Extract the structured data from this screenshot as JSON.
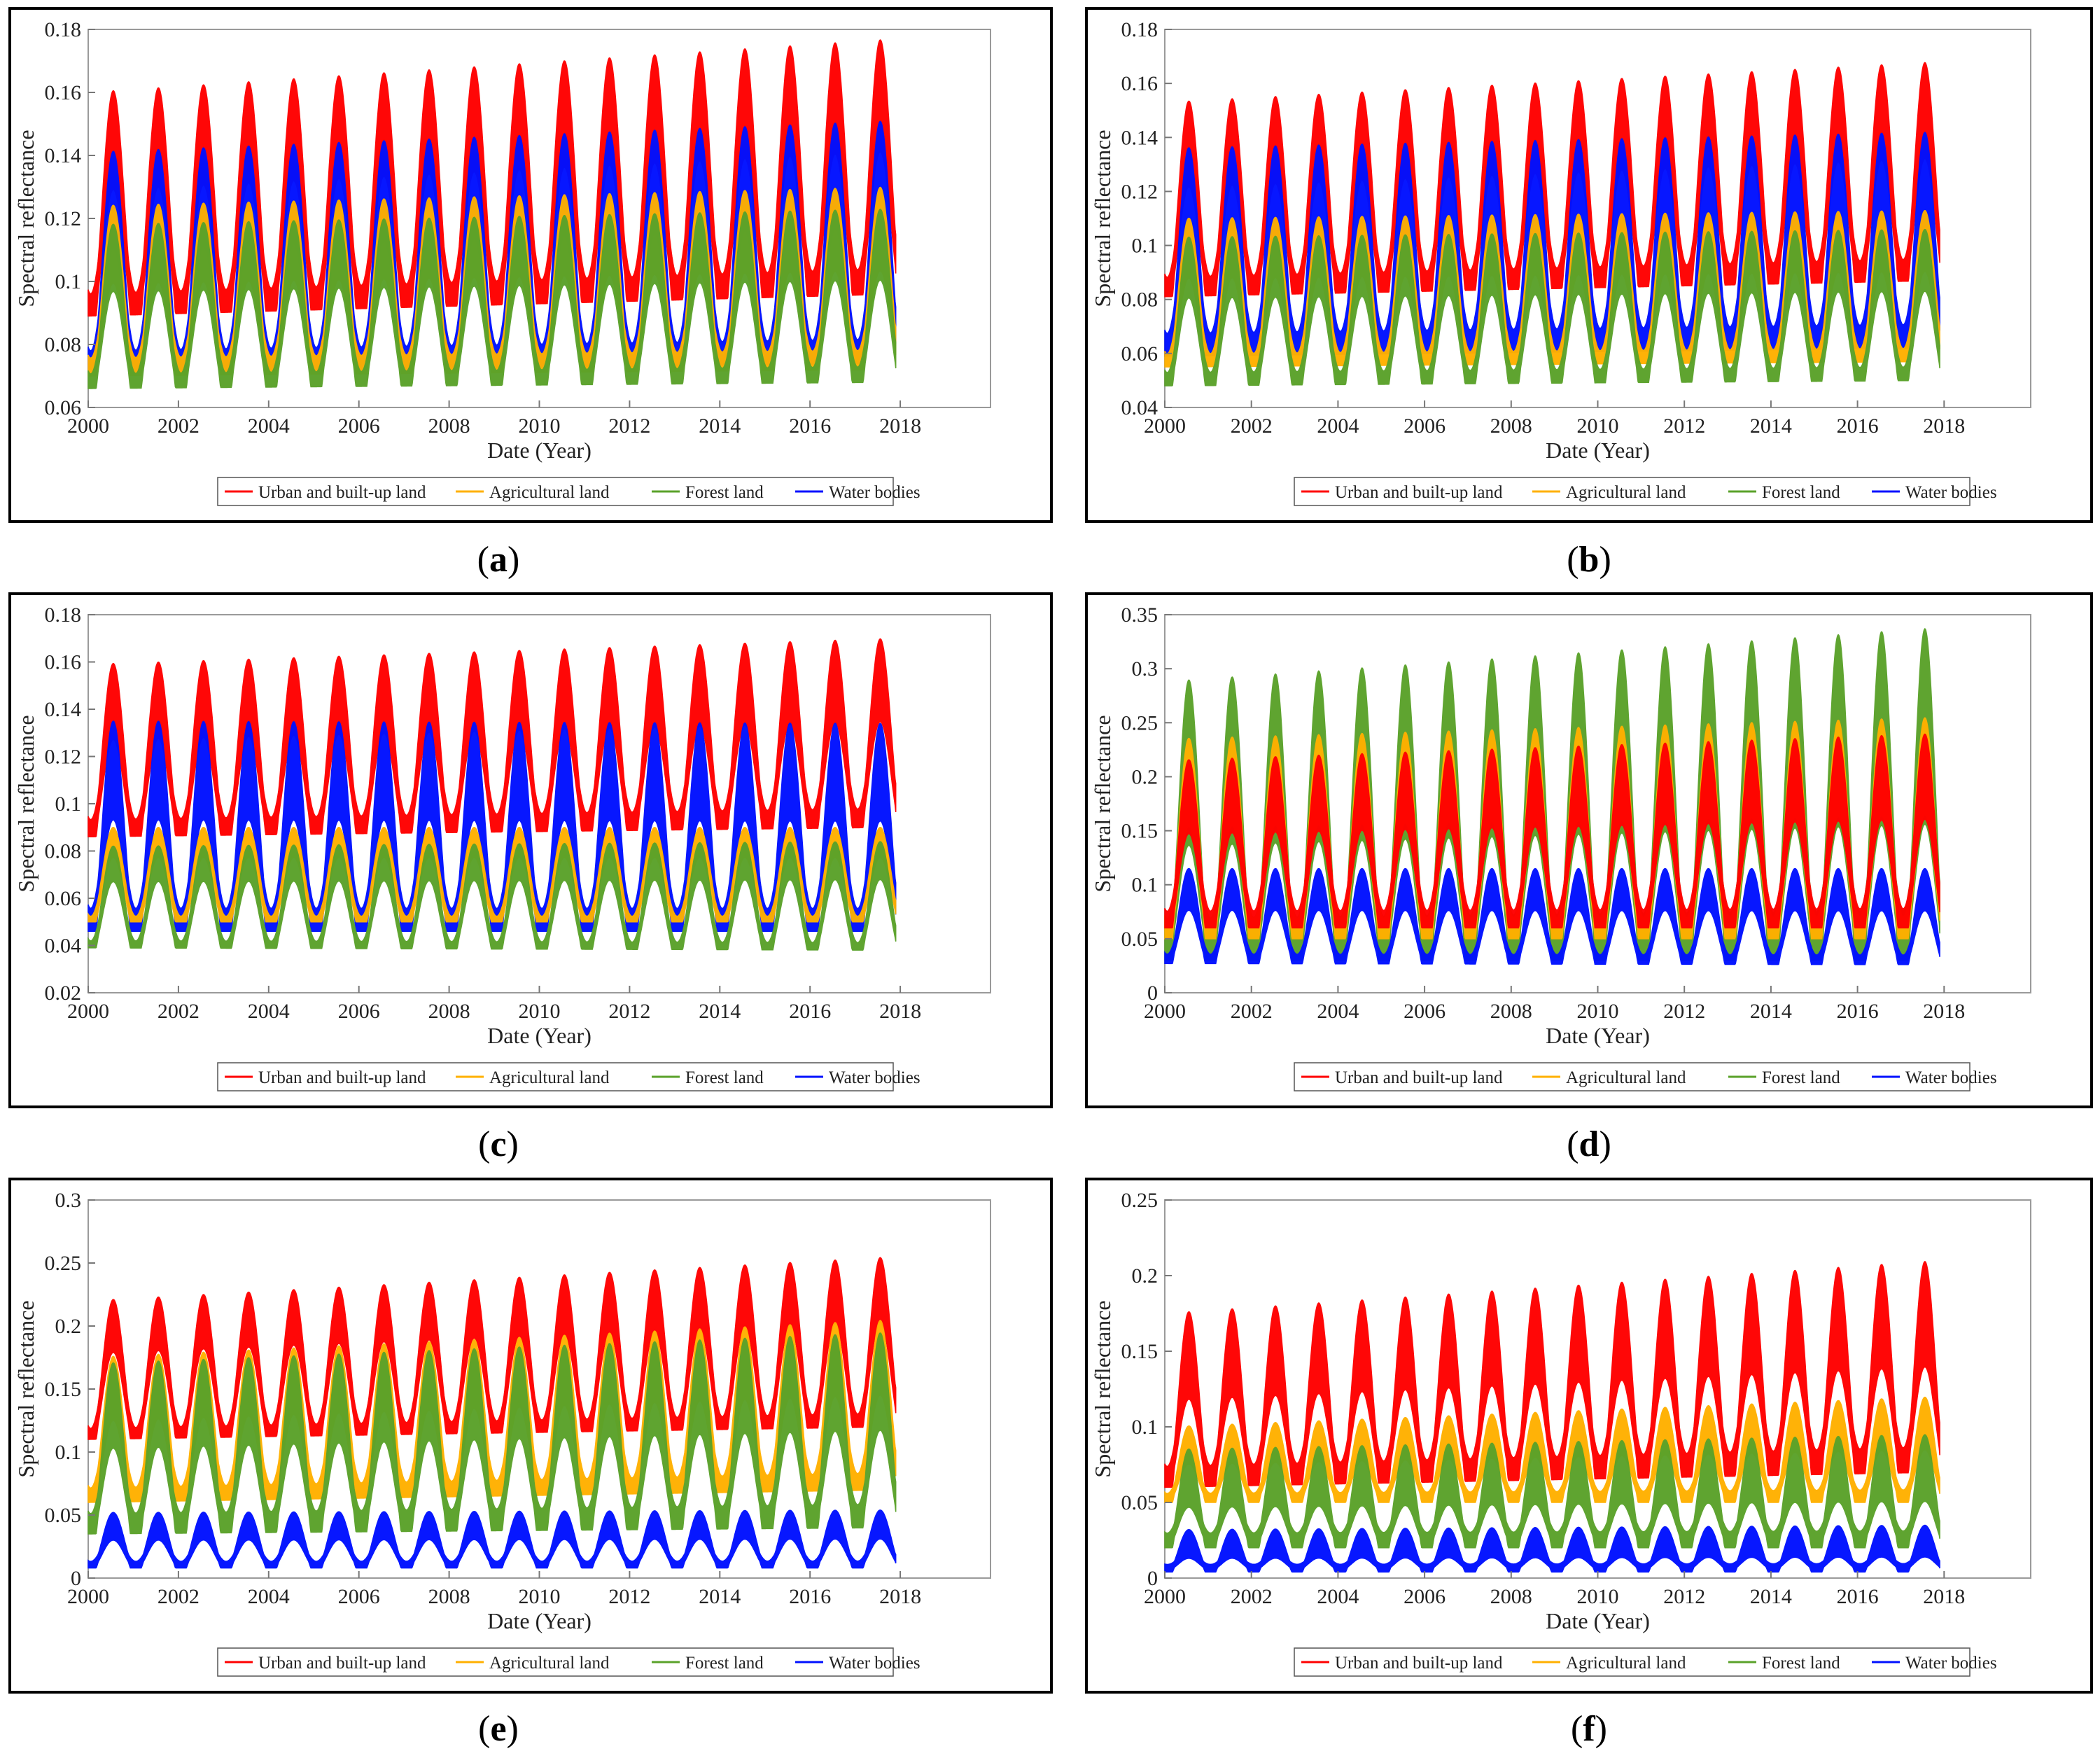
{
  "colors": {
    "urban": "#ff0000",
    "agricultural": "#ffb000",
    "forest": "#5aa22a",
    "water": "#0010ff"
  },
  "chart_data": [
    {
      "id": "a",
      "caption": "a",
      "type": "area",
      "xlabel": "Date (Year)",
      "ylabel": "Spectral reflectance",
      "xlim": [
        2000,
        2020
      ],
      "ylim": [
        0.06,
        0.18
      ],
      "xticks": [
        "2000",
        "2002",
        "2004",
        "2006",
        "2008",
        "2010",
        "2012",
        "2014",
        "2016",
        "2018"
      ],
      "yticks": [
        "0.06",
        "0.08",
        "0.1",
        "0.12",
        "0.14",
        "0.16",
        "0.18"
      ],
      "legend": "bottom",
      "series": [
        {
          "name": "Urban and built-up land",
          "color_key": "urban",
          "peak": [
            0.16,
            0.177
          ],
          "trough_outer": [
            0.089,
            0.096
          ],
          "inner": 0.1
        },
        {
          "name": "Water bodies",
          "color_key": "water",
          "peak": [
            0.141,
            0.151
          ],
          "trough_outer": [
            0.071,
            0.074
          ],
          "inner": 0.1
        },
        {
          "name": "Agricultural land",
          "color_key": "agricultural",
          "peak": [
            0.124,
            0.13
          ],
          "trough_outer": [
            0.07,
            0.072
          ],
          "inner": 0.106
        },
        {
          "name": "Forest land",
          "color_key": "forest",
          "peak": [
            0.118,
            0.123
          ],
          "trough_outer": [
            0.066,
            0.068
          ],
          "inner": 0.09
        }
      ]
    },
    {
      "id": "b",
      "caption": "b",
      "type": "area",
      "xlabel": "Date (Year)",
      "ylabel": "Spectral reflectance",
      "xlim": [
        2000,
        2020
      ],
      "ylim": [
        0.04,
        0.18
      ],
      "xticks": [
        "2000",
        "2002",
        "2004",
        "2006",
        "2008",
        "2010",
        "2012",
        "2014",
        "2016",
        "2018"
      ],
      "yticks": [
        "0.04",
        "0.06",
        "0.08",
        "0.1",
        "0.12",
        "0.14",
        "0.16",
        "0.18"
      ],
      "legend": "bottom",
      "series": [
        {
          "name": "Urban and built-up land",
          "color_key": "urban",
          "peak": [
            0.153,
            0.168
          ],
          "trough_outer": [
            0.081,
            0.087
          ],
          "inner": 0.1
        },
        {
          "name": "Water bodies",
          "color_key": "water",
          "peak": [
            0.136,
            0.142
          ],
          "trough_outer": [
            0.059,
            0.062
          ],
          "inner": 0.11
        },
        {
          "name": "Agricultural land",
          "color_key": "agricultural",
          "peak": [
            0.11,
            0.113
          ],
          "trough_outer": [
            0.055,
            0.057
          ],
          "inner": 0.088
        },
        {
          "name": "Forest land",
          "color_key": "forest",
          "peak": [
            0.103,
            0.106
          ],
          "trough_outer": [
            0.048,
            0.05
          ],
          "inner": 0.09
        }
      ]
    },
    {
      "id": "c",
      "caption": "c",
      "type": "area",
      "xlabel": "Date (Year)",
      "ylabel": "Spectral reflectance",
      "xlim": [
        2000,
        2020
      ],
      "ylim": [
        0.02,
        0.18
      ],
      "xticks": [
        "2000",
        "2002",
        "2004",
        "2006",
        "2008",
        "2010",
        "2012",
        "2014",
        "2016",
        "2018"
      ],
      "yticks": [
        "0.02",
        "0.04",
        "0.06",
        "0.08",
        "0.1",
        "0.12",
        "0.14",
        "0.16",
        "0.18"
      ],
      "legend": "bottom",
      "series": [
        {
          "name": "Urban and built-up land",
          "color_key": "urban",
          "peak": [
            0.159,
            0.17
          ],
          "trough_outer": [
            0.086,
            0.09
          ],
          "inner": 0.1
        },
        {
          "name": "Water bodies",
          "color_key": "water",
          "peak": [
            0.135,
            0.134
          ],
          "trough_outer": [
            0.046,
            0.046
          ],
          "inner": 0.11
        },
        {
          "name": "Agricultural land",
          "color_key": "agricultural",
          "peak": [
            0.09,
            0.09
          ],
          "trough_outer": [
            0.05,
            0.05
          ],
          "inner": 0.06
        },
        {
          "name": "Forest land",
          "color_key": "forest",
          "peak": [
            0.082,
            0.084
          ],
          "trough_outer": [
            0.039,
            0.038
          ],
          "inner": 0.07
        }
      ]
    },
    {
      "id": "d",
      "caption": "d",
      "type": "area",
      "xlabel": "Date (Year)",
      "ylabel": "Spectral reflectance",
      "xlim": [
        2000,
        2020
      ],
      "ylim": [
        0,
        0.35
      ],
      "xticks": [
        "2000",
        "2002",
        "2004",
        "2006",
        "2008",
        "2010",
        "2012",
        "2014",
        "2016",
        "2018"
      ],
      "yticks": [
        "0",
        "0.05",
        "0.1",
        "0.15",
        "0.2",
        "0.25",
        "0.3",
        "0.35"
      ],
      "legend": "bottom",
      "series": [
        {
          "name": "Forest land",
          "color_key": "forest",
          "peak": [
            0.288,
            0.338
          ],
          "trough_outer": [
            0.03,
            0.03
          ],
          "inner": 0.15
        },
        {
          "name": "Agricultural land",
          "color_key": "agricultural",
          "peak": [
            0.235,
            0.255
          ],
          "trough_outer": [
            0.05,
            0.05
          ],
          "inner": 0.1
        },
        {
          "name": "Urban and built-up land",
          "color_key": "urban",
          "peak": [
            0.215,
            0.24
          ],
          "trough_outer": [
            0.06,
            0.06
          ],
          "inner": 0.1
        },
        {
          "name": "Water bodies",
          "color_key": "water",
          "peak": [
            0.115,
            0.115
          ],
          "trough_outer": [
            0.027,
            0.026
          ],
          "inner": 0.1
        }
      ]
    },
    {
      "id": "e",
      "caption": "e",
      "type": "area",
      "xlabel": "Date (Year)",
      "ylabel": "Spectral reflectance",
      "xlim": [
        2000,
        2020
      ],
      "ylim": [
        0,
        0.3
      ],
      "xticks": [
        "2000",
        "2002",
        "2004",
        "2006",
        "2008",
        "2010",
        "2012",
        "2014",
        "2016",
        "2018"
      ],
      "yticks": [
        "0",
        "0.05",
        "0.1",
        "0.15",
        "0.2",
        "0.25",
        "0.3"
      ],
      "legend": "bottom",
      "series": [
        {
          "name": "Urban and built-up land",
          "color_key": "urban",
          "peak": [
            0.22,
            0.255
          ],
          "trough_outer": [
            0.11,
            0.12
          ],
          "inner": 0.08
        },
        {
          "name": "Agricultural land",
          "color_key": "agricultural",
          "peak": [
            0.175,
            0.205
          ],
          "trough_outer": [
            0.06,
            0.07
          ],
          "inner": 0.1
        },
        {
          "name": "Forest land",
          "color_key": "forest",
          "peak": [
            0.17,
            0.195
          ],
          "trough_outer": [
            0.035,
            0.04
          ],
          "inner": 0.12
        },
        {
          "name": "Water bodies",
          "color_key": "water",
          "peak": [
            0.052,
            0.054
          ],
          "trough_outer": [
            0.008,
            0.008
          ],
          "inner": 0.12
        }
      ]
    },
    {
      "id": "f",
      "caption": "f",
      "type": "area",
      "xlabel": "Date (Year)",
      "ylabel": "Spectral reflectance",
      "xlim": [
        2000,
        2020
      ],
      "ylim": [
        0,
        0.25
      ],
      "xticks": [
        "2000",
        "2002",
        "2004",
        "2006",
        "2008",
        "2010",
        "2012",
        "2014",
        "2016",
        "2018"
      ],
      "yticks": [
        "0",
        "0.05",
        "0.1",
        "0.15",
        "0.2",
        "0.25"
      ],
      "legend": "bottom",
      "series": [
        {
          "name": "Urban and built-up land",
          "color_key": "urban",
          "peak": [
            0.175,
            0.21
          ],
          "trough_outer": [
            0.06,
            0.07
          ],
          "inner": 0.12
        },
        {
          "name": "Agricultural land",
          "color_key": "agricultural",
          "peak": [
            0.1,
            0.12
          ],
          "trough_outer": [
            0.05,
            0.05
          ],
          "inner": 0.12
        },
        {
          "name": "Forest land",
          "color_key": "forest",
          "peak": [
            0.085,
            0.095
          ],
          "trough_outer": [
            0.02,
            0.02
          ],
          "inner": 0.15
        },
        {
          "name": "Water bodies",
          "color_key": "water",
          "peak": [
            0.032,
            0.035
          ],
          "trough_outer": [
            0.004,
            0.004
          ],
          "inner": 0.18
        }
      ]
    }
  ],
  "legend_order": [
    "Urban and built-up land",
    "Agricultural land",
    "Forest land",
    "Water bodies"
  ],
  "legend_colors": {
    "Urban and built-up land": "urban",
    "Agricultural land": "agricultural",
    "Forest land": "forest",
    "Water bodies": "water"
  }
}
